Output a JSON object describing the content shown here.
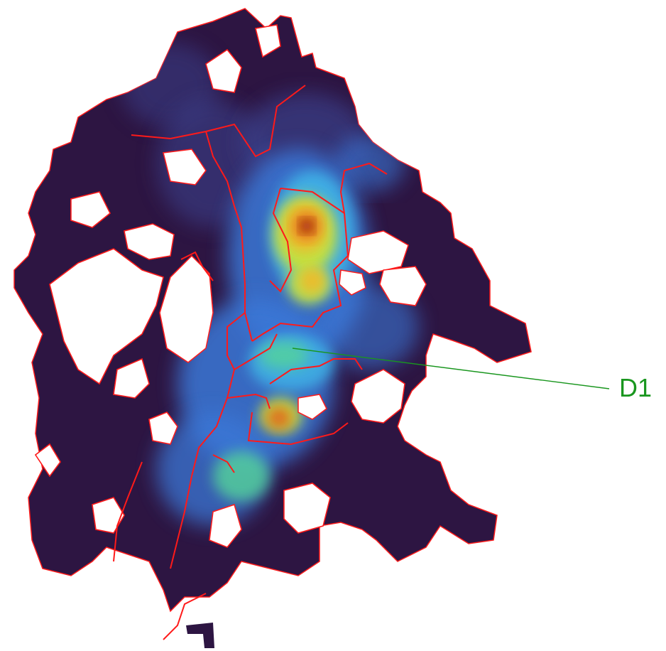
{
  "map": {
    "colors": {
      "background": "#ffffff",
      "base": "#2d1542",
      "boundary": "#ff1a1a",
      "annotation": "#19961e",
      "heat_ramp": [
        "#2d1542",
        "#3b3f8a",
        "#3a78d8",
        "#3fb3e6",
        "#55d49a",
        "#c9e43a",
        "#f1b72a",
        "#e0691c",
        "#8a1a0e"
      ]
    },
    "annotation": {
      "label": "D1"
    }
  }
}
